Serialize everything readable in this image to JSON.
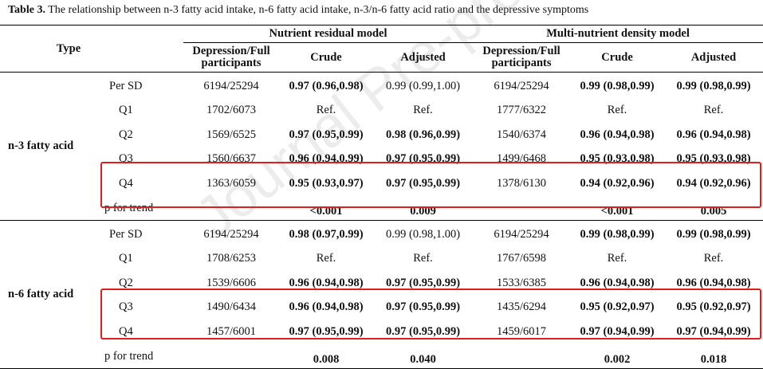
{
  "caption": {
    "label": "Table 3.",
    "text": " The relationship between n-3 fatty acid intake, n-6 fatty acid intake, n-3/n-6 fatty acid ratio and the depressive symptoms"
  },
  "watermark": "Journal Pre-proof",
  "header": {
    "type": "Type",
    "groups": [
      "Nutrient residual model",
      "Multi-nutrient density model"
    ],
    "subcols": [
      "Depression/Full participants",
      "Crude",
      "Adjusted",
      "Depression/Full participants",
      "Crude",
      "Adjusted"
    ]
  },
  "groups": [
    {
      "label": "n-3 fatty acid",
      "rows": [
        {
          "item": "Per SD",
          "c": [
            "6194/25294",
            "0.97 (0.96,0.98)",
            "0.99 (0.99,1.00)",
            "6194/25294",
            "0.99 (0.98,0.99)",
            "0.99 (0.98,0.99)"
          ]
        },
        {
          "item": "Q1",
          "c": [
            "1702/6073",
            "Ref.",
            "Ref.",
            "1777/6322",
            "Ref.",
            "Ref."
          ]
        },
        {
          "item": "Q2",
          "c": [
            "1569/6525",
            "0.97 (0.95,0.99)",
            "0.98 (0.96,0.99)",
            "1540/6374",
            "0.96 (0.94,0.98)",
            "0.96 (0.94,0.98)"
          ]
        },
        {
          "item": "Q3",
          "c": [
            "1560/6637",
            "0.96 (0.94,0.99)",
            "0.97 (0.95,0.99)",
            "1499/6468",
            "0.95 (0.93,0.98)",
            "0.95 (0.93,0.98)"
          ]
        },
        {
          "item": "Q4",
          "c": [
            "1363/6059",
            "0.95 (0.93,0.97)",
            "0.97 (0.95,0.99)",
            "1378/6130",
            "0.94 (0.92,0.96)",
            "0.94 (0.92,0.96)"
          ]
        },
        {
          "item": "p for trend",
          "c": [
            "",
            "<0.001",
            "0.009",
            "",
            "<0.001",
            "0.005"
          ]
        }
      ]
    },
    {
      "label": "n-6 fatty acid",
      "rows": [
        {
          "item": "Per SD",
          "c": [
            "6194/25294",
            "0.98 (0.97,0.99)",
            "0.99 (0.98,1.00)",
            "6194/25294",
            "0.99 (0.98,0.99)",
            "0.99 (0.98,0.99)"
          ]
        },
        {
          "item": "Q1",
          "c": [
            "1708/6253",
            "Ref.",
            "Ref.",
            "1767/6598",
            "Ref.",
            "Ref."
          ]
        },
        {
          "item": "Q2",
          "c": [
            "1539/6606",
            "0.96 (0.94,0.98)",
            "0.97 (0.95,0.99)",
            "1533/6385",
            "0.96 (0.94,0.98)",
            "0.96 (0.94,0.98)"
          ]
        },
        {
          "item": "Q3",
          "c": [
            "1490/6434",
            "0.96 (0.94,0.98)",
            "0.97 (0.95,0.99)",
            "1435/6294",
            "0.95 (0.92,0.97)",
            "0.95 (0.92,0.97)"
          ]
        },
        {
          "item": "Q4",
          "c": [
            "1457/6001",
            "0.97 (0.95,0.99)",
            "0.97 (0.95,0.99)",
            "1459/6017",
            "0.97 (0.94,0.99)",
            "0.97 (0.94,0.99)"
          ]
        },
        {
          "item": "p for trend",
          "c": [
            "",
            "0.008",
            "0.040",
            "",
            "0.002",
            "0.018"
          ]
        }
      ]
    }
  ],
  "bold_flags": [
    [
      [
        0,
        1,
        0,
        0,
        1,
        1
      ],
      [
        0,
        0,
        0,
        0,
        0,
        0
      ],
      [
        0,
        1,
        1,
        0,
        1,
        1
      ],
      [
        0,
        1,
        1,
        0,
        1,
        1
      ],
      [
        0,
        1,
        1,
        0,
        1,
        1
      ],
      [
        0,
        1,
        1,
        0,
        1,
        1
      ]
    ],
    [
      [
        0,
        1,
        0,
        0,
        1,
        1
      ],
      [
        0,
        0,
        0,
        0,
        0,
        0
      ],
      [
        0,
        1,
        1,
        0,
        1,
        1
      ],
      [
        0,
        1,
        1,
        0,
        1,
        1
      ],
      [
        0,
        1,
        1,
        0,
        1,
        1
      ],
      [
        0,
        1,
        1,
        0,
        1,
        1
      ]
    ]
  ],
  "highlight_color": "#e11d1d"
}
